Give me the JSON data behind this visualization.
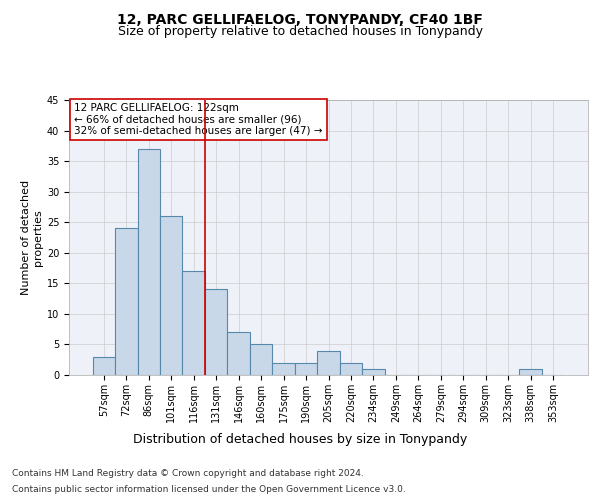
{
  "title": "12, PARC GELLIFAELOG, TONYPANDY, CF40 1BF",
  "subtitle": "Size of property relative to detached houses in Tonypandy",
  "xlabel": "Distribution of detached houses by size in Tonypandy",
  "ylabel": "Number of detached\nproperties",
  "categories": [
    "57sqm",
    "72sqm",
    "86sqm",
    "101sqm",
    "116sqm",
    "131sqm",
    "146sqm",
    "160sqm",
    "175sqm",
    "190sqm",
    "205sqm",
    "220sqm",
    "234sqm",
    "249sqm",
    "264sqm",
    "279sqm",
    "294sqm",
    "309sqm",
    "323sqm",
    "338sqm",
    "353sqm"
  ],
  "values": [
    3,
    24,
    37,
    26,
    17,
    14,
    7,
    5,
    2,
    2,
    4,
    2,
    1,
    0,
    0,
    0,
    0,
    0,
    0,
    1,
    0
  ],
  "bar_color": "#c8d8e8",
  "bar_edge_color": "#5588aa",
  "bar_edge_width": 0.8,
  "vline_x": 4.5,
  "vline_color": "#cc0000",
  "ylim": [
    0,
    45
  ],
  "yticks": [
    0,
    5,
    10,
    15,
    20,
    25,
    30,
    35,
    40,
    45
  ],
  "annotation_box_text": "12 PARC GELLIFAELOG: 122sqm\n← 66% of detached houses are smaller (96)\n32% of semi-detached houses are larger (47) →",
  "annotation_box_color": "#cc0000",
  "footer_line1": "Contains HM Land Registry data © Crown copyright and database right 2024.",
  "footer_line2": "Contains public sector information licensed under the Open Government Licence v3.0.",
  "background_color": "#ffffff",
  "axes_background": "#eef2f8",
  "grid_color": "#cccccc",
  "title_fontsize": 10,
  "subtitle_fontsize": 9,
  "ylabel_fontsize": 8,
  "xlabel_fontsize": 9,
  "tick_fontsize": 7,
  "footer_fontsize": 6.5,
  "annotation_fontsize": 7.5
}
